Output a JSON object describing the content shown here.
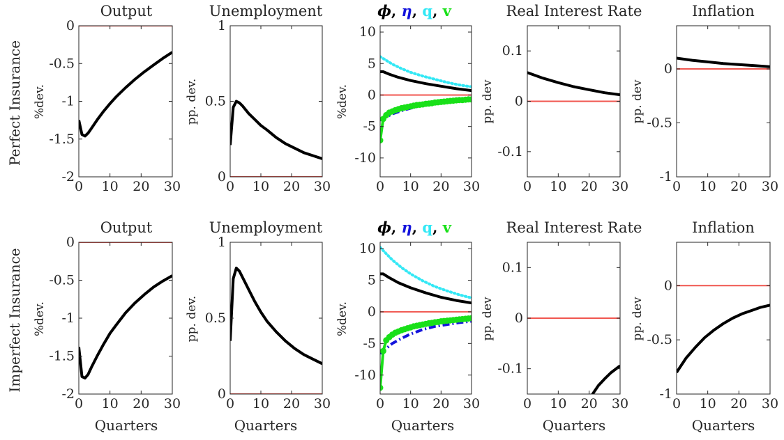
{
  "rows": [
    {
      "label": "Perfect Insurance",
      "panels": [
        {
          "title": "Output",
          "ylabel": "%dev."
        },
        {
          "title": "Unemployment",
          "ylabel": "pp. dev."
        },
        {
          "title_parts": [
            "ϕ",
            ", ",
            "η",
            ", ",
            "q",
            ", ",
            "v"
          ],
          "ylabel": "%dev."
        },
        {
          "title": "Real Interest Rate",
          "ylabel": "pp. dev"
        },
        {
          "title": "Inflation",
          "ylabel": "pp. dev"
        }
      ]
    },
    {
      "label": "Imperfect Insurance",
      "panels": [
        {
          "title": "Output",
          "ylabel": "%dev."
        },
        {
          "title": "Unemployment",
          "ylabel": "pp. dev."
        },
        {
          "title_parts": [
            "ϕ",
            ", ",
            "η",
            ", ",
            "q",
            ", ",
            "v"
          ],
          "ylabel": "%dev."
        },
        {
          "title": "Real Interest Rate",
          "ylabel": "pp. dev"
        },
        {
          "title": "Inflation",
          "ylabel": "pp. dev"
        }
      ]
    }
  ],
  "xlabel": "Quarters",
  "colors": {
    "baseline": "#f0564f",
    "main": "#000000",
    "phi": "#000000",
    "eta": "#1414dc",
    "q": "#33e8f5",
    "v": "#19e019",
    "axis": "#262626"
  },
  "chart_data": [
    {
      "id": "r0p0",
      "type": "line",
      "xlim": [
        0,
        30
      ],
      "xticks": [
        0,
        10,
        20,
        30
      ],
      "ylim": [
        -2,
        0
      ],
      "yticks": [
        -2,
        -1.5,
        -1,
        -0.5,
        0
      ],
      "ytick_labels": [
        "-2",
        "-1.5",
        "-1",
        "-0.5",
        "0"
      ],
      "baseline": 0,
      "series": [
        {
          "key": "main",
          "x": [
            0,
            1,
            2,
            3,
            4,
            6,
            8,
            10,
            12,
            15,
            18,
            21,
            24,
            27,
            30
          ],
          "y": [
            -1.25,
            -1.44,
            -1.46,
            -1.42,
            -1.36,
            -1.24,
            -1.13,
            -1.03,
            -0.94,
            -0.82,
            -0.71,
            -0.61,
            -0.52,
            -0.43,
            -0.35
          ]
        }
      ]
    },
    {
      "id": "r0p1",
      "type": "line",
      "xlim": [
        0,
        30
      ],
      "xticks": [
        0,
        10,
        20,
        30
      ],
      "ylim": [
        0,
        1
      ],
      "yticks": [
        0,
        0.5,
        1
      ],
      "ytick_labels": [
        "0",
        "0.5",
        "1"
      ],
      "baseline": 0,
      "series": [
        {
          "key": "main",
          "x": [
            0,
            1,
            2,
            3,
            4,
            6,
            8,
            10,
            12,
            15,
            18,
            21,
            24,
            27,
            30
          ],
          "y": [
            0.21,
            0.46,
            0.5,
            0.49,
            0.47,
            0.42,
            0.38,
            0.34,
            0.31,
            0.26,
            0.22,
            0.19,
            0.16,
            0.14,
            0.12
          ]
        }
      ]
    },
    {
      "id": "r0p2",
      "type": "line",
      "xlim": [
        0,
        30
      ],
      "xticks": [
        0,
        10,
        20,
        30
      ],
      "ylim": [
        -13,
        11
      ],
      "yticks": [
        -10,
        -5,
        0,
        5,
        10
      ],
      "ytick_labels": [
        "-10",
        "-5",
        "0",
        "5",
        "10"
      ],
      "baseline": 0,
      "series": [
        {
          "key": "q",
          "dash": "dot",
          "x": [
            0,
            2,
            4,
            7,
            10,
            14,
            18,
            22,
            26,
            30
          ],
          "y": [
            6.1,
            5.5,
            4.9,
            4.2,
            3.6,
            3.0,
            2.5,
            2.0,
            1.6,
            1.3
          ]
        },
        {
          "key": "phi",
          "x": [
            0,
            1,
            3,
            6,
            10,
            15,
            20,
            25,
            30
          ],
          "y": [
            3.7,
            3.7,
            3.3,
            2.8,
            2.3,
            1.8,
            1.4,
            1.0,
            0.7
          ]
        },
        {
          "key": "eta",
          "dash": "dashdot",
          "x": [
            0,
            2,
            4,
            7,
            10,
            14,
            18,
            22,
            26,
            30
          ],
          "y": [
            -4.0,
            -3.5,
            -3.0,
            -2.5,
            -2.1,
            -1.6,
            -1.3,
            -1.0,
            -0.8,
            -0.6
          ]
        },
        {
          "key": "v",
          "markers": true,
          "x": [
            0,
            1,
            2,
            3,
            4,
            5,
            6,
            7,
            8,
            9,
            10,
            11,
            12,
            13,
            14,
            15,
            16,
            17,
            18,
            19,
            20,
            21,
            22,
            23,
            24,
            25,
            26,
            27,
            28,
            29,
            30
          ],
          "y": [
            -7.2,
            -3.8,
            -3.2,
            -2.8,
            -2.6,
            -2.4,
            -2.25,
            -2.1,
            -2.0,
            -1.9,
            -1.8,
            -1.7,
            -1.6,
            -1.55,
            -1.5,
            -1.4,
            -1.35,
            -1.3,
            -1.2,
            -1.15,
            -1.1,
            -1.05,
            -1.0,
            -0.95,
            -0.9,
            -0.85,
            -0.8,
            -0.8,
            -0.75,
            -0.7,
            -0.7
          ]
        }
      ]
    },
    {
      "id": "r0p3",
      "type": "line",
      "xlim": [
        0,
        30
      ],
      "xticks": [
        0,
        10,
        20,
        30
      ],
      "ylim": [
        -0.15,
        0.15
      ],
      "yticks": [
        -0.1,
        0,
        0.1
      ],
      "ytick_labels": [
        "-0.1",
        "0",
        "0.1"
      ],
      "baseline": 0,
      "series": [
        {
          "key": "main",
          "x": [
            0,
            5,
            10,
            15,
            20,
            25,
            30
          ],
          "y": [
            0.057,
            0.046,
            0.037,
            0.029,
            0.023,
            0.017,
            0.013
          ]
        }
      ]
    },
    {
      "id": "r0p4",
      "type": "line",
      "xlim": [
        0,
        30
      ],
      "xticks": [
        0,
        10,
        20,
        30
      ],
      "ylim": [
        -1,
        0.4
      ],
      "yticks": [
        -1,
        -0.5,
        0
      ],
      "ytick_labels": [
        "-1",
        "-0.5",
        "0"
      ],
      "baseline": 0,
      "series": [
        {
          "key": "main",
          "x": [
            0,
            5,
            10,
            15,
            20,
            25,
            30
          ],
          "y": [
            0.1,
            0.08,
            0.065,
            0.05,
            0.04,
            0.03,
            0.02
          ]
        }
      ]
    },
    {
      "id": "r1p0",
      "type": "line",
      "xlim": [
        0,
        30
      ],
      "xticks": [
        0,
        10,
        20,
        30
      ],
      "ylim": [
        -2,
        0
      ],
      "yticks": [
        -2,
        -1.5,
        -1,
        -0.5,
        0
      ],
      "ytick_labels": [
        "-2",
        "-1.5",
        "-1",
        "-0.5",
        "0"
      ],
      "baseline": 0,
      "series": [
        {
          "key": "main",
          "x": [
            0,
            1,
            2,
            3,
            4,
            6,
            8,
            10,
            12,
            15,
            18,
            21,
            24,
            27,
            30
          ],
          "y": [
            -1.38,
            -1.77,
            -1.79,
            -1.74,
            -1.65,
            -1.49,
            -1.34,
            -1.2,
            -1.09,
            -0.93,
            -0.8,
            -0.69,
            -0.59,
            -0.51,
            -0.44
          ]
        }
      ]
    },
    {
      "id": "r1p1",
      "type": "line",
      "xlim": [
        0,
        30
      ],
      "xticks": [
        0,
        10,
        20,
        30
      ],
      "ylim": [
        0,
        1
      ],
      "yticks": [
        0,
        0.5,
        1
      ],
      "ytick_labels": [
        "0",
        "0.5",
        "1"
      ],
      "baseline": 0,
      "series": [
        {
          "key": "main",
          "x": [
            0,
            1,
            2,
            3,
            4,
            6,
            8,
            10,
            12,
            15,
            18,
            21,
            24,
            27,
            30
          ],
          "y": [
            0.35,
            0.76,
            0.83,
            0.81,
            0.77,
            0.69,
            0.61,
            0.54,
            0.48,
            0.41,
            0.35,
            0.3,
            0.26,
            0.23,
            0.2
          ]
        }
      ]
    },
    {
      "id": "r1p2",
      "type": "line",
      "xlim": [
        0,
        30
      ],
      "xticks": [
        0,
        10,
        20,
        30
      ],
      "ylim": [
        -13,
        11
      ],
      "yticks": [
        -10,
        -5,
        0,
        5,
        10
      ],
      "ytick_labels": [
        "-10",
        "-5",
        "0",
        "5",
        "10"
      ],
      "baseline": 0,
      "series": [
        {
          "key": "q",
          "dash": "dot",
          "x": [
            0,
            2,
            4,
            7,
            10,
            14,
            18,
            22,
            26,
            30
          ],
          "y": [
            10.2,
            9.2,
            8.2,
            7.0,
            6.0,
            4.9,
            4.0,
            3.3,
            2.7,
            2.2
          ]
        },
        {
          "key": "phi",
          "x": [
            0,
            1,
            3,
            6,
            10,
            15,
            20,
            25,
            30
          ],
          "y": [
            6.0,
            6.0,
            5.4,
            4.6,
            3.8,
            3.0,
            2.3,
            1.8,
            1.4
          ]
        },
        {
          "key": "eta",
          "dash": "dashdot",
          "x": [
            0,
            2,
            4,
            7,
            10,
            14,
            18,
            22,
            26,
            30
          ],
          "y": [
            -6.6,
            -5.8,
            -5.0,
            -4.2,
            -3.5,
            -2.8,
            -2.3,
            -2.0,
            -1.7,
            -1.5
          ]
        },
        {
          "key": "v",
          "markers": true,
          "x": [
            0,
            1,
            2,
            3,
            4,
            5,
            6,
            7,
            8,
            9,
            10,
            11,
            12,
            13,
            14,
            15,
            16,
            17,
            18,
            19,
            20,
            21,
            22,
            23,
            24,
            25,
            26,
            27,
            28,
            29,
            30
          ],
          "y": [
            -12,
            -6.2,
            -4.5,
            -4.0,
            -3.6,
            -3.3,
            -3.1,
            -2.9,
            -2.75,
            -2.6,
            -2.45,
            -2.3,
            -2.2,
            -2.1,
            -2.0,
            -1.9,
            -1.8,
            -1.75,
            -1.65,
            -1.6,
            -1.5,
            -1.45,
            -1.4,
            -1.35,
            -1.3,
            -1.25,
            -1.2,
            -1.15,
            -1.1,
            -1.05,
            -1.0
          ]
        }
      ]
    },
    {
      "id": "r1p3",
      "type": "line",
      "xlim": [
        0,
        30
      ],
      "xticks": [
        0,
        10,
        20,
        30
      ],
      "ylim": [
        -0.15,
        0.15
      ],
      "yticks": [
        -0.1,
        0,
        0.1
      ],
      "ytick_labels": [
        "-0.1",
        "0",
        "0.1"
      ],
      "baseline": 0,
      "series": [
        {
          "key": "main",
          "x": [
            21,
            23,
            25,
            27,
            30
          ],
          "y": [
            -0.151,
            -0.133,
            -0.12,
            -0.108,
            -0.094
          ]
        }
      ]
    },
    {
      "id": "r1p4",
      "type": "line",
      "xlim": [
        0,
        30
      ],
      "xticks": [
        0,
        10,
        20,
        30
      ],
      "ylim": [
        -1,
        0.4
      ],
      "yticks": [
        -1,
        -0.5,
        0
      ],
      "ytick_labels": [
        "-1",
        "-0.5",
        "0"
      ],
      "baseline": 0,
      "series": [
        {
          "key": "main",
          "x": [
            0,
            3,
            6,
            9,
            12,
            15,
            18,
            21,
            24,
            27,
            30
          ],
          "y": [
            -0.8,
            -0.67,
            -0.57,
            -0.48,
            -0.41,
            -0.35,
            -0.3,
            -0.26,
            -0.23,
            -0.2,
            -0.18
          ]
        }
      ]
    }
  ]
}
